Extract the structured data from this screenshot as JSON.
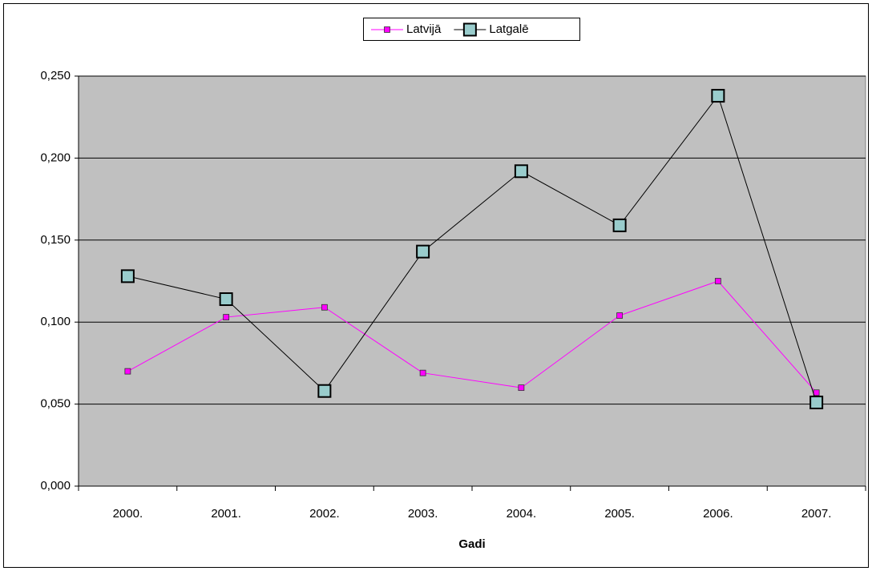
{
  "chart_data": {
    "type": "line",
    "x_label": "Gadi",
    "categories": [
      "2000.",
      "2001.",
      "2002.",
      "2003.",
      "2004.",
      "2005.",
      "2006.",
      "2007."
    ],
    "series": [
      {
        "name": "Latvijā",
        "color": "#ff00ff",
        "marker": "square",
        "marker_fill": "#ff00ff",
        "values": [
          0.07,
          0.103,
          0.109,
          0.069,
          0.06,
          0.104,
          0.125,
          0.057
        ]
      },
      {
        "name": "Latgalē",
        "color": "#000000",
        "marker": "square-large",
        "marker_fill": "#99cccc",
        "values": [
          0.128,
          0.114,
          0.058,
          0.143,
          0.192,
          0.159,
          0.238,
          0.051
        ]
      }
    ],
    "ylim": [
      0,
      0.25
    ],
    "yticks": [
      {
        "value": 0,
        "label": "0,000"
      },
      {
        "value": 0.05,
        "label": "0,050"
      },
      {
        "value": 0.1,
        "label": "0,100"
      },
      {
        "value": 0.15,
        "label": "0,150"
      },
      {
        "value": 0.2,
        "label": "0,200"
      },
      {
        "value": 0.25,
        "label": "0,250"
      }
    ],
    "grid": true,
    "plot_background": "#c0c0c0",
    "legend_position": "top"
  }
}
